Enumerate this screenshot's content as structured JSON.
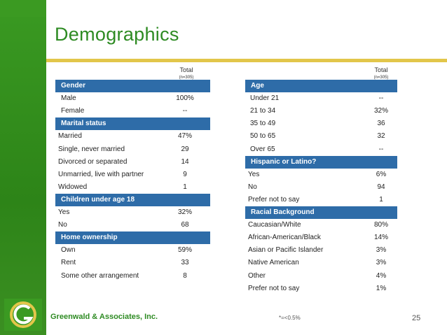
{
  "title": "Demographics",
  "col_total_label": "Total",
  "col_total_n": "(n=305)",
  "left": {
    "sections": [
      {
        "header": "Gender",
        "rows": [
          [
            "Male",
            "100%"
          ],
          [
            "Female",
            "--"
          ]
        ]
      },
      {
        "header": "Marital status",
        "rows": [
          [
            "Married",
            "47%"
          ],
          [
            "Single, never married",
            "29"
          ],
          [
            "Divorced or separated",
            "14"
          ],
          [
            "Unmarried, live with partner",
            "9"
          ],
          [
            "Widowed",
            "1"
          ]
        ]
      },
      {
        "header": "Children under age 18",
        "rows": [
          [
            "Yes",
            "32%"
          ],
          [
            "No",
            "68"
          ]
        ]
      },
      {
        "header": "Home ownership",
        "rows": [
          [
            "Own",
            "59%"
          ],
          [
            "Rent",
            "33"
          ],
          [
            "Some other arrangement",
            "8"
          ]
        ]
      }
    ]
  },
  "right": {
    "sections": [
      {
        "header": "Age",
        "rows": [
          [
            "Under 21",
            "--"
          ],
          [
            "21 to 34",
            "32%"
          ],
          [
            "35 to 49",
            "36"
          ],
          [
            "50 to 65",
            "32"
          ],
          [
            "Over 65",
            "--"
          ]
        ]
      },
      {
        "header": "Hispanic or Latino?",
        "rows": [
          [
            "Yes",
            "6%"
          ],
          [
            "No",
            "94"
          ],
          [
            "Prefer not to say",
            "1"
          ]
        ]
      },
      {
        "header": "Racial Background",
        "rows": [
          [
            "Caucasian/White",
            "80%"
          ],
          [
            "African-American/Black",
            "14%"
          ],
          [
            "Asian or Pacific Islander",
            "3%"
          ],
          [
            "Native American",
            "3%"
          ],
          [
            "Other",
            "4%"
          ],
          [
            "Prefer not to say",
            "1%"
          ]
        ]
      }
    ]
  },
  "footer": {
    "company": "Greenwald & Associates, Inc.",
    "note": "*=<0.5%",
    "page": "25"
  },
  "colors": {
    "header_blue": "#2e6ca8",
    "brand_green": "#2e8b23",
    "rule_gold": "#e2c64a"
  }
}
